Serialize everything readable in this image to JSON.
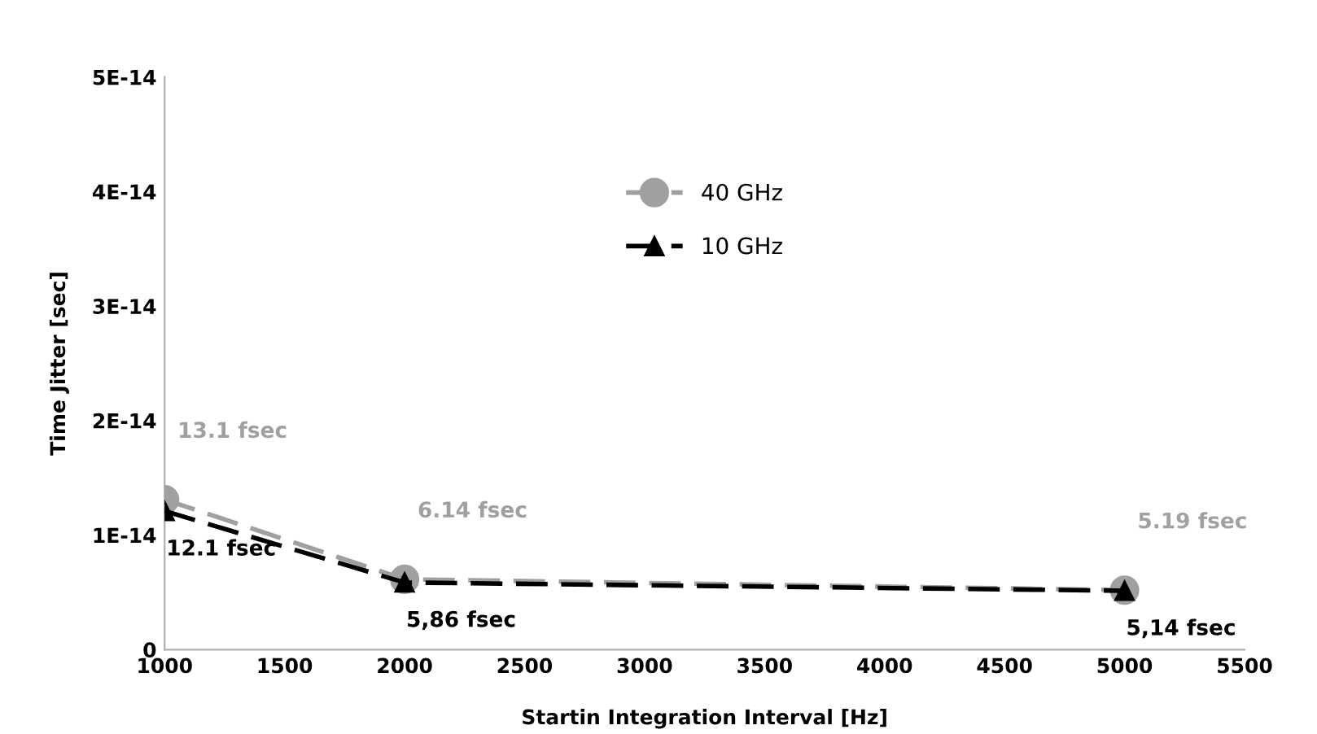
{
  "chart_data": {
    "type": "line",
    "xlabel": "Startin Integration Interval [Hz]",
    "ylabel": "Time Jitter [sec]",
    "x": [
      1000,
      2000,
      5000
    ],
    "series": [
      {
        "name": "40 GHz",
        "color": "#a0a0a0",
        "marker": "circle",
        "line_style": "dashed",
        "values": [
          1.31e-14,
          6.14e-15,
          5.19e-15
        ]
      },
      {
        "name": "10 GHz",
        "color": "#000000",
        "marker": "triangle",
        "line_style": "dashed",
        "values": [
          1.21e-14,
          5.86e-15,
          5.14e-15
        ]
      }
    ],
    "annotations": [
      {
        "text": "13.1 fsec",
        "x": 1000,
        "y": 1.31e-14
      },
      {
        "text": "6.14 fsec",
        "x": 2000,
        "y": 6.14e-15
      },
      {
        "text": "5.19 fsec",
        "x": 5000,
        "y": 5.19e-15
      },
      {
        "text": "12.1 fsec",
        "x": 1000,
        "y": 1.21e-14
      },
      {
        "text": "5,86 fsec",
        "x": 2000,
        "y": 5.86e-15
      },
      {
        "text": "5,14 fsec",
        "x": 5000,
        "y": 5.14e-15
      }
    ],
    "xlim": [
      1000,
      5500
    ],
    "xticks": [
      1000,
      1500,
      2000,
      2500,
      3000,
      3500,
      4000,
      4500,
      5000,
      5500
    ],
    "ylim": [
      0,
      5e-14
    ],
    "yticks": [
      0,
      {
        "value": 1e-14,
        "label": "1E-14"
      },
      {
        "value": 2e-14,
        "label": "2E-14"
      },
      {
        "value": 3e-14,
        "label": "3E-14"
      },
      {
        "value": 4e-14,
        "label": "4E-14"
      },
      {
        "value": 5e-14,
        "label": "5E-14"
      }
    ],
    "grid": false,
    "legend": "top"
  }
}
